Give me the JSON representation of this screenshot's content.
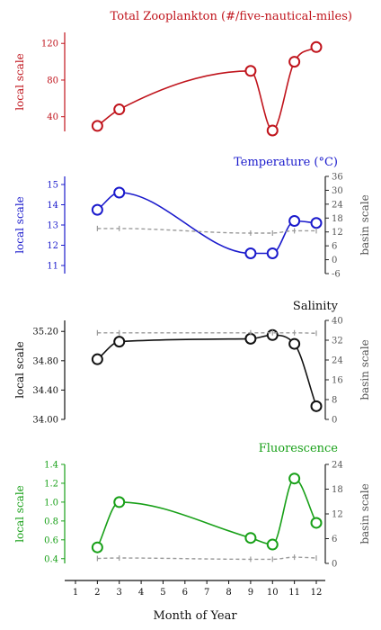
{
  "chart_data": [
    {
      "type": "line",
      "title": "Total Zooplankton (#/five-nautical-miles)",
      "color": "#c0141c",
      "ylabel_left": "local scale",
      "ylabel_right": "",
      "ylim_left": [
        24,
        132
      ],
      "yticks_left": [
        "40",
        "80",
        "120"
      ],
      "series": [
        {
          "x": [
            2,
            3,
            9,
            10,
            11,
            12
          ],
          "values": [
            30,
            48,
            90,
            25,
            100,
            116
          ]
        }
      ]
    },
    {
      "type": "line",
      "title": "Temperature (°C)",
      "color": "#1a1acc",
      "ylabel_left": "local scale",
      "ylabel_right": "basin scale",
      "ylim_left": [
        10.6,
        15.4
      ],
      "yticks_left": [
        "11",
        "12",
        "13",
        "14",
        "15"
      ],
      "ylim_right": [
        -6,
        36
      ],
      "yticks_right": [
        "-6",
        "0",
        "6",
        "12",
        "18",
        "24",
        "30",
        "36"
      ],
      "series": [
        {
          "x": [
            2,
            3,
            9,
            10,
            11,
            12
          ],
          "values": [
            13.75,
            14.6,
            11.6,
            11.6,
            13.2,
            13.1
          ]
        },
        {
          "axis": "right",
          "style": "dashed",
          "color": "#9a9a9a",
          "x": [
            2,
            3,
            9,
            10,
            11,
            12
          ],
          "values": [
            13.5,
            13.5,
            11.5,
            11.5,
            12.5,
            12.5
          ]
        }
      ]
    },
    {
      "type": "line",
      "title": "Salinity",
      "color": "#111111",
      "ylabel_left": "local scale",
      "ylabel_right": "basin scale",
      "ylim_left": [
        34.0,
        35.35
      ],
      "yticks_left": [
        "34.00",
        "34.40",
        "34.80",
        "35.20"
      ],
      "ylim_right": [
        0,
        40
      ],
      "yticks_right": [
        "0",
        "8",
        "16",
        "24",
        "32",
        "40"
      ],
      "series": [
        {
          "x": [
            2,
            3,
            9,
            10,
            11,
            12
          ],
          "values": [
            34.82,
            35.06,
            35.1,
            35.15,
            35.03,
            34.18
          ]
        },
        {
          "axis": "right",
          "style": "dashed",
          "color": "#9a9a9a",
          "x": [
            2,
            3,
            9,
            10,
            11,
            12
          ],
          "values": [
            35,
            35,
            35,
            35,
            35,
            34.8
          ]
        }
      ]
    },
    {
      "type": "line",
      "title": "Fluorescence",
      "color": "#18a018",
      "ylabel_left": "local scale",
      "ylabel_right": "basin scale",
      "ylim_left": [
        0.35,
        1.4
      ],
      "yticks_left": [
        "0.4",
        "0.6",
        "0.8",
        "1.0",
        "1.2",
        "1.4"
      ],
      "ylim_right": [
        0,
        24
      ],
      "yticks_right": [
        "0",
        "6",
        "12",
        "18",
        "24"
      ],
      "series": [
        {
          "x": [
            2,
            3,
            9,
            10,
            11,
            12
          ],
          "values": [
            0.52,
            1.0,
            0.62,
            0.55,
            1.25,
            0.78
          ]
        },
        {
          "axis": "right",
          "style": "dashed",
          "color": "#9a9a9a",
          "x": [
            2,
            3,
            9,
            10,
            11,
            12
          ],
          "values": [
            1.2,
            1.3,
            1.0,
            1.0,
            1.5,
            1.3
          ]
        }
      ]
    }
  ],
  "x_axis": {
    "label": "Month of Year",
    "ticks": [
      "1",
      "2",
      "3",
      "4",
      "5",
      "6",
      "7",
      "8",
      "9",
      "10",
      "11",
      "12"
    ]
  }
}
